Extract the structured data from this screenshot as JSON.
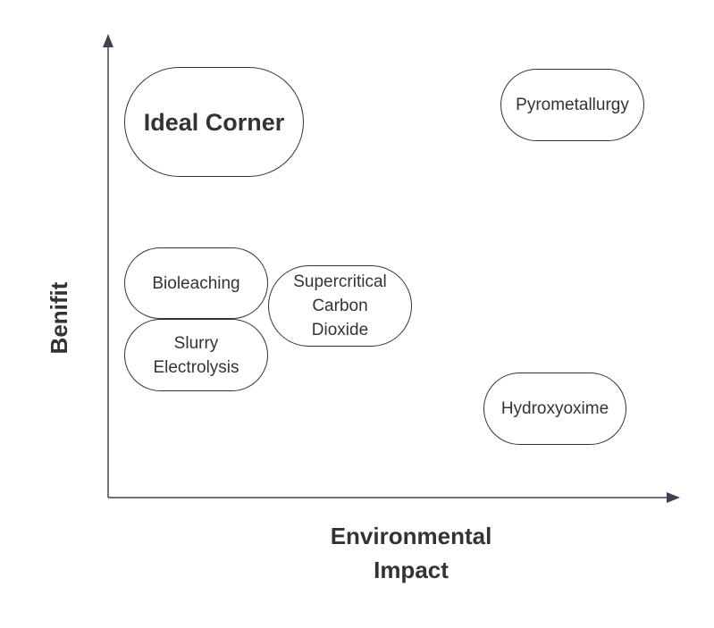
{
  "axes": {
    "x_label": "Environmental\nImpact",
    "y_label": "Benifit"
  },
  "nodes": {
    "ideal_corner": "Ideal Corner",
    "pyrometallurgy": "Pyrometallurgy",
    "bioleaching": "Bioleaching",
    "slurry_electrolysis": "Slurry\nElectrolysis",
    "supercritical_co2": "Supercritical\nCarbon\nDioxide",
    "hydroxyoxime": "Hydroxyoxime"
  },
  "colors": {
    "axis": "#3d4350",
    "node_border": "#333333",
    "text": "#333333",
    "background": "#ffffff"
  }
}
